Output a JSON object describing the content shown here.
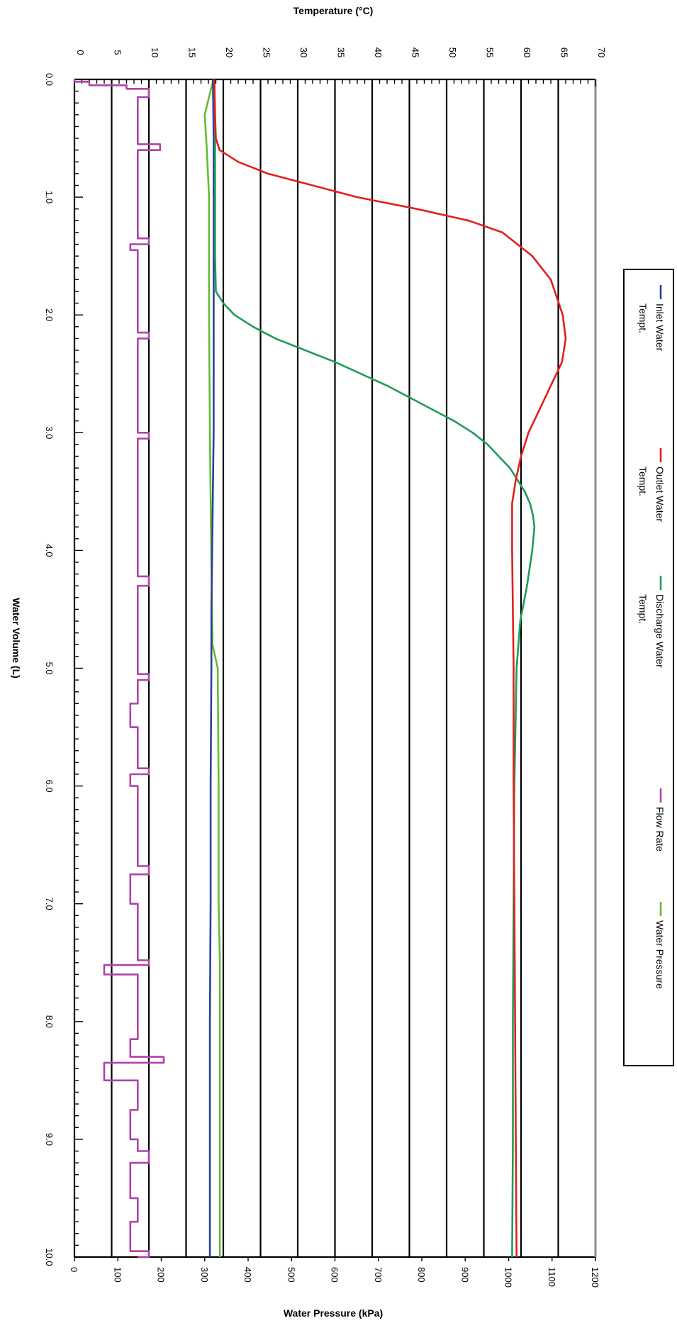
{
  "chart_data": {
    "type": "line",
    "orientation": "rotated-90-clockwise",
    "title_x": "Water Volume (L)",
    "title_top": "Temperature (°C)",
    "title_bottom": "Water Pressure (kPa)",
    "x_range": [
      0,
      10
    ],
    "x_ticks": [
      "0.0",
      "1.0",
      "2.0",
      "3.0",
      "4.0",
      "5.0",
      "6.0",
      "7.0",
      "8.0",
      "9.0",
      "10.0"
    ],
    "temp_range": [
      0,
      70
    ],
    "temp_ticks": [
      "0",
      "5",
      "10",
      "15",
      "20",
      "25",
      "30",
      "35",
      "40",
      "45",
      "50",
      "55",
      "60",
      "65",
      "70"
    ],
    "pressure_range": [
      0,
      1200
    ],
    "pressure_ticks": [
      "0",
      "100",
      "200",
      "300",
      "400",
      "500",
      "600",
      "700",
      "800",
      "900",
      "1000",
      "1100",
      "1200"
    ],
    "grid": true,
    "legend_position": "right",
    "legend": [
      {
        "name": "Inlet Water Tempt.",
        "lines": [
          "Inlet Water",
          "Tempt."
        ],
        "color": "#2b3f9e"
      },
      {
        "name": "Outlet Water Tempt.",
        "lines": [
          "Outlet Water",
          "Tempt."
        ],
        "color": "#e0201b"
      },
      {
        "name": "Discharge Water Tempt.",
        "lines": [
          "Discharge Water",
          "Tempt."
        ],
        "color": "#1f9b5a"
      },
      {
        "name": "Flow Rate",
        "lines": [
          "Flow Rate"
        ],
        "color": "#b043a8"
      },
      {
        "name": "Water Pressure",
        "lines": [
          "Water Pressure"
        ],
        "color": "#66bb33"
      }
    ],
    "series": [
      {
        "name": "Inlet Water Tempt.",
        "color": "#2b3f9e",
        "axis": "temperature",
        "x": [
          0,
          0.5,
          1.0,
          1.5,
          2.0,
          2.5,
          3.0,
          3.5,
          4.0,
          4.5,
          5.0,
          6.0,
          7.0,
          8.0,
          9.0,
          10.0
        ],
        "y": [
          18.6,
          18.7,
          18.7,
          18.7,
          18.7,
          18.7,
          18.7,
          18.6,
          18.5,
          18.4,
          18.4,
          18.3,
          18.3,
          18.2,
          18.2,
          18.2
        ]
      },
      {
        "name": "Outlet Water Tempt.",
        "color": "#e0201b",
        "axis": "temperature",
        "x": [
          0,
          0.3,
          0.5,
          0.6,
          0.7,
          0.8,
          0.9,
          1.0,
          1.1,
          1.2,
          1.3,
          1.5,
          1.7,
          2.0,
          2.2,
          2.4,
          2.6,
          2.8,
          3.0,
          3.2,
          3.4,
          3.6,
          4.0,
          5.0,
          6.0,
          7.0,
          8.0,
          9.0,
          10.0
        ],
        "y": [
          18.8,
          18.9,
          19.0,
          19.5,
          22.0,
          26.0,
          32.0,
          38.0,
          46.0,
          53.0,
          57.5,
          61.5,
          64.0,
          65.6,
          66.0,
          65.5,
          64.0,
          62.5,
          61.0,
          60.0,
          59.3,
          58.8,
          58.8,
          59.0,
          59.0,
          59.1,
          59.2,
          59.3,
          59.4
        ]
      },
      {
        "name": "Discharge Water Tempt.",
        "color": "#1f9b5a",
        "axis": "temperature",
        "x": [
          0,
          0.5,
          1.0,
          1.5,
          1.8,
          1.9,
          2.0,
          2.1,
          2.2,
          2.3,
          2.4,
          2.5,
          2.6,
          2.7,
          2.8,
          2.9,
          3.0,
          3.1,
          3.2,
          3.3,
          3.4,
          3.5,
          3.6,
          3.7,
          3.8,
          4.0,
          4.3,
          4.6,
          5.0,
          6.0,
          7.0,
          8.0,
          9.0,
          10.0
        ],
        "y": [
          18.8,
          18.9,
          18.9,
          18.9,
          19.0,
          20.0,
          21.5,
          24.0,
          27.0,
          31.0,
          35.0,
          38.5,
          42.0,
          45.0,
          48.0,
          51.0,
          53.5,
          55.5,
          57.0,
          58.5,
          59.5,
          60.5,
          61.2,
          61.6,
          61.8,
          61.5,
          60.8,
          59.9,
          59.4,
          59.1,
          59.0,
          58.9,
          58.9,
          58.8
        ]
      },
      {
        "name": "Water Pressure",
        "color": "#66bb33",
        "axis": "pressure",
        "x": [
          0,
          0.3,
          0.6,
          1.0,
          2.0,
          3.0,
          4.0,
          4.8,
          5.0,
          6.0,
          7.0,
          7.5,
          8.0,
          9.0,
          10.0
        ],
        "y": [
          320,
          300,
          305,
          310,
          310,
          312,
          315,
          318,
          330,
          332,
          332,
          335,
          335,
          335,
          335
        ]
      },
      {
        "name": "Flow Rate",
        "color": "#b043a8",
        "axis": "temperature",
        "x": [
          0.0,
          0.02,
          0.05,
          0.08,
          0.1,
          0.15,
          0.3,
          0.5,
          0.55,
          0.6,
          1.0,
          1.35,
          1.4,
          1.45,
          1.5,
          2.0,
          2.15,
          2.2,
          2.5,
          3.0,
          3.05,
          3.5,
          4.0,
          4.22,
          4.3,
          4.5,
          5.0,
          5.05,
          5.1,
          5.3,
          5.5,
          5.85,
          5.9,
          6.0,
          6.5,
          6.68,
          6.75,
          7.0,
          7.48,
          7.52,
          7.6,
          8.0,
          8.15,
          8.3,
          8.35,
          8.5,
          8.75,
          9.0,
          9.1,
          9.2,
          9.5,
          9.7,
          9.95,
          10.0
        ],
        "y": [
          0,
          2,
          7,
          10,
          10,
          8.5,
          8.5,
          8.5,
          11.5,
          8.5,
          8.5,
          10,
          7.5,
          8.5,
          8.5,
          8.5,
          10,
          8.5,
          8.5,
          10,
          8.5,
          8.5,
          8.5,
          10,
          8.5,
          8.5,
          8.5,
          10,
          8.5,
          7.5,
          8.5,
          10,
          7.5,
          8.5,
          8.5,
          10,
          7.5,
          8.5,
          10,
          4,
          8.5,
          8.5,
          7.5,
          12,
          4,
          8.5,
          7.5,
          8.5,
          10,
          7.5,
          8.5,
          7.5,
          10,
          8.5
        ]
      }
    ]
  }
}
